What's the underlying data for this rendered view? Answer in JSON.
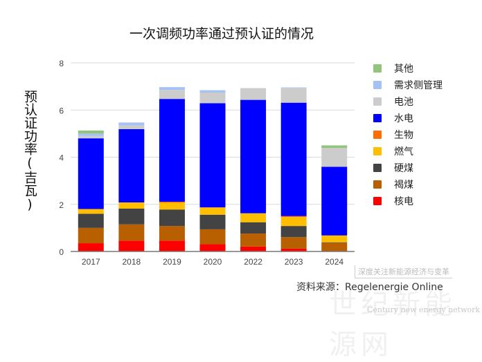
{
  "chart_data": {
    "type": "bar",
    "stacked": true,
    "title": "一次调频功率通过预认证的情况",
    "xlabel": "",
    "ylabel": "预认证功率(吉瓦)",
    "ylim": [
      0,
      8
    ],
    "yticks": [
      0,
      2,
      4,
      6,
      8
    ],
    "grid": true,
    "legend_position": "right",
    "categories": [
      "2017",
      "2018",
      "2019",
      "2020",
      "2022",
      "2023",
      "2024"
    ],
    "series": [
      {
        "name": "核电",
        "color": "#ff0000",
        "values": [
          0.35,
          0.46,
          0.46,
          0.31,
          0.21,
          0.12,
          0.0
        ]
      },
      {
        "name": "褐煤",
        "color": "#b85f00",
        "values": [
          0.65,
          0.69,
          0.62,
          0.63,
          0.55,
          0.49,
          0.37
        ]
      },
      {
        "name": "硬煤",
        "color": "#434343",
        "values": [
          0.6,
          0.67,
          0.7,
          0.62,
          0.48,
          0.47,
          0.02
        ]
      },
      {
        "name": "燃气",
        "color": "#ffbf00",
        "values": [
          0.2,
          0.26,
          0.29,
          0.31,
          0.38,
          0.38,
          0.29
        ]
      },
      {
        "name": "生物",
        "color": "#ff6d01",
        "values": [
          0.0,
          0.0,
          0.04,
          0.0,
          0.0,
          0.04,
          0.0
        ]
      },
      {
        "name": "水电",
        "color": "#0000ff",
        "values": [
          3.0,
          3.11,
          4.36,
          4.42,
          4.81,
          4.81,
          2.91
        ]
      },
      {
        "name": "电池",
        "color": "#cccccc",
        "values": [
          0.1,
          0.16,
          0.38,
          0.45,
          0.5,
          0.63,
          0.8
        ]
      },
      {
        "name": "需求侧管理",
        "color": "#a4c2f4",
        "values": [
          0.1,
          0.12,
          0.12,
          0.1,
          0.0,
          0.02,
          0.0
        ]
      },
      {
        "name": "其他",
        "color": "#93c47d",
        "values": [
          0.13,
          0.0,
          0.0,
          0.0,
          0.0,
          0.0,
          0.11
        ]
      }
    ]
  },
  "legend_order": [
    8,
    7,
    6,
    5,
    4,
    3,
    2,
    1,
    0
  ],
  "source": "资料来源：Regelenergie Online",
  "watermark": {
    "slogan": "深度关注新能源经济与变革",
    "name": "世纪新能源网",
    "english": "Century new energy network"
  }
}
